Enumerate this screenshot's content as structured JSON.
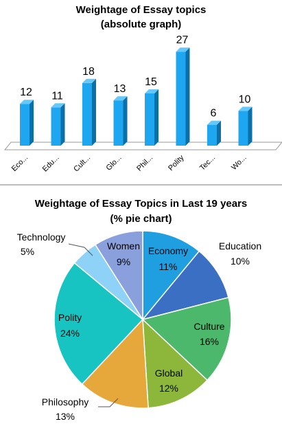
{
  "chart_data": [
    {
      "type": "bar",
      "title": "Weightage of Essay topics",
      "subtitle": "(absolute graph)",
      "categories": [
        "Eco...",
        "Edu...",
        "Cult...",
        "Glo...",
        "Phil...",
        "Polity",
        "Tec...",
        "Wo..."
      ],
      "values": [
        12,
        11,
        18,
        13,
        15,
        27,
        6,
        10
      ],
      "data_labels": [
        "12",
        "11",
        "18",
        "13",
        "15",
        "27",
        "6",
        "10"
      ],
      "ylim": [
        0,
        30
      ],
      "grid": false,
      "legend": "none",
      "bar_color": "#1ea7f0",
      "bar_side_color": "#0b6fa8",
      "bar_top_color": "#66c8f8"
    },
    {
      "type": "pie",
      "title": "Weightage of Essay Topics in Last 19 years",
      "subtitle": "(% pie chart)",
      "slices": [
        {
          "label": "Economy",
          "pct": "11%",
          "value": 11,
          "color": "#1f9fe0"
        },
        {
          "label": "Education",
          "pct": "10%",
          "value": 10,
          "color": "#3a6fc4"
        },
        {
          "label": "Culture",
          "pct": "16%",
          "value": 16,
          "color": "#4cb86b"
        },
        {
          "label": "Global",
          "pct": "12%",
          "value": 12,
          "color": "#8db73a"
        },
        {
          "label": "Philosophy",
          "pct": "13%",
          "value": 13,
          "color": "#e6a83a"
        },
        {
          "label": "Polity",
          "pct": "24%",
          "value": 24,
          "color": "#17c4c1"
        },
        {
          "label": "Technology",
          "pct": "5%",
          "value": 5,
          "color": "#8fd2f7"
        },
        {
          "label": "Women",
          "pct": "9%",
          "value": 9,
          "color": "#8aa0dc"
        }
      ]
    }
  ]
}
